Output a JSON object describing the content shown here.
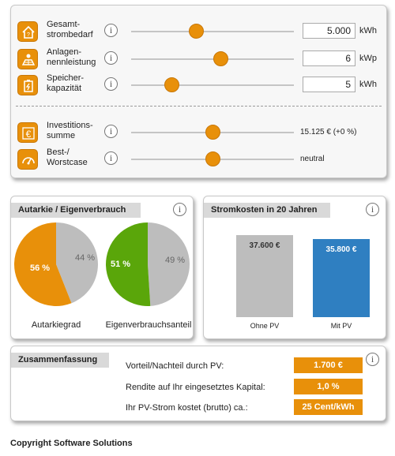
{
  "inputs": {
    "strombedarf": {
      "label": "Gesamt-\nstrombedarf",
      "value": "5.000",
      "unit": "kWh",
      "slider_fraction": 0.4,
      "icon": "house-question-icon"
    },
    "anlagen": {
      "label": "Anlagen-\nnennleistung",
      "value": "6",
      "unit": "kWp",
      "slider_fraction": 0.55,
      "icon": "solar-panel-icon"
    },
    "speicher": {
      "label": "Speicher-\nkapazität",
      "value": "5",
      "unit": "kWh",
      "slider_fraction": 0.25,
      "icon": "battery-icon"
    },
    "investition": {
      "label": "Investitions-\nsumme",
      "value": "15.125 € (+0 %)",
      "slider_fraction": 0.5,
      "icon": "euro-icon"
    },
    "bestworst": {
      "label": "Best-/\nWorstcase",
      "value": "neutral",
      "slider_fraction": 0.5,
      "icon": "gauge-icon"
    }
  },
  "info_symbol": "i",
  "autarkie": {
    "title": "Autarkie / Eigenverbrauch",
    "autarkiegrad": {
      "caption": "Autarkiegrad",
      "main_label": "56 %",
      "rest_label": "44 %",
      "main_percent": 56,
      "main_color": "#e8900a"
    },
    "eigenverbrauch": {
      "caption": "Eigenverbrauchsanteil",
      "main_label": "51 %",
      "rest_label": "49 %",
      "main_percent": 51,
      "main_color": "#5aa60a"
    },
    "rest_color": "#bdbdbd"
  },
  "stromkosten": {
    "title": "Stromkosten in 20 Jahren",
    "chart_data": {
      "type": "bar",
      "categories": [
        "Ohne PV",
        "Mit PV"
      ],
      "values": [
        37600,
        35800
      ],
      "value_labels": [
        "37.600 €",
        "35.800 €"
      ],
      "colors": [
        "#bdbdbd",
        "#2f7fc1"
      ],
      "label_colors": [
        "#333333",
        "#ffffff"
      ],
      "title": "Stromkosten in 20 Jahren"
    }
  },
  "summary": {
    "title": "Zusammenfassung",
    "rows": [
      {
        "label": "Vorteil/Nachteil durch PV:",
        "value": "1.700 €"
      },
      {
        "label": "Rendite auf Ihr eingesetztes Kapital:",
        "value": "1,0 %"
      },
      {
        "label": "Ihr PV-Strom kostet (brutto) ca.:",
        "value": "25 Cent/kWh"
      }
    ]
  },
  "copyright": "Copyright Software Solutions",
  "colors": {
    "accent": "#e8900a",
    "green": "#5aa60a",
    "blue": "#2f7fc1",
    "gray": "#bdbdbd"
  }
}
